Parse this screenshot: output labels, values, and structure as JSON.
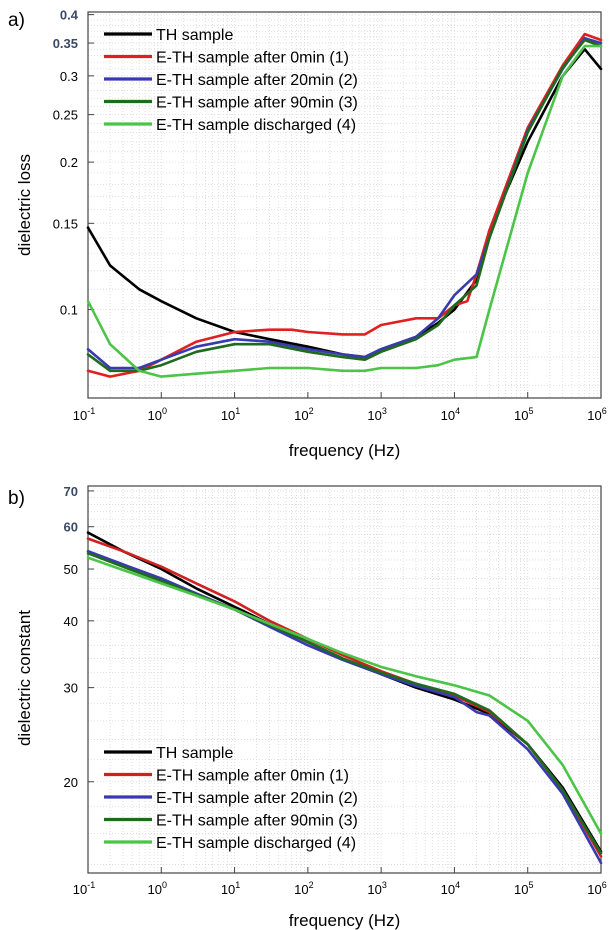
{
  "chart_data": [
    {
      "panel": "a)",
      "type": "line",
      "xlabel": "frequency (Hz)",
      "ylabel": "dielectric loss",
      "x_scale": "log",
      "y_scale": "log",
      "xlim": [
        0.1,
        1000000
      ],
      "ylim": [
        0.066,
        0.405
      ],
      "grid": true,
      "legend": "top-left",
      "x_ticks": [
        {
          "base": "10",
          "exp": "-1",
          "value": 0.1
        },
        {
          "base": "10",
          "exp": "0",
          "value": 1
        },
        {
          "base": "10",
          "exp": "1",
          "value": 10
        },
        {
          "base": "10",
          "exp": "2",
          "value": 100
        },
        {
          "base": "10",
          "exp": "3",
          "value": 1000
        },
        {
          "base": "10",
          "exp": "4",
          "value": 10000
        },
        {
          "base": "10",
          "exp": "5",
          "value": 100000
        },
        {
          "base": "10",
          "exp": "6",
          "value": 1000000
        }
      ],
      "y_ticks": [
        {
          "label": "0.1",
          "value": 0.1
        },
        {
          "label": "0.15",
          "value": 0.15
        },
        {
          "label": "0.2",
          "value": 0.2
        },
        {
          "label": "0.25",
          "value": 0.25
        },
        {
          "label": "0.3",
          "value": 0.3
        }
      ],
      "y_ticks_top": [
        {
          "label": "0.35",
          "value": 0.35
        },
        {
          "label": "0.4",
          "value": 0.4
        }
      ],
      "series": [
        {
          "name": "TH sample",
          "color": "#000000",
          "x": [
            0.1,
            0.2,
            0.5,
            1,
            3,
            10,
            30,
            100,
            300,
            600,
            1000,
            3000,
            6000,
            10000,
            20000,
            30000,
            100000,
            300000,
            600000,
            1000000
          ],
          "y": [
            0.147,
            0.123,
            0.11,
            0.104,
            0.096,
            0.09,
            0.087,
            0.084,
            0.081,
            0.08,
            0.083,
            0.088,
            0.094,
            0.1,
            0.115,
            0.145,
            0.22,
            0.3,
            0.34,
            0.31
          ]
        },
        {
          "name": "E-TH sample after 0min (1)",
          "color": "#e02020",
          "x": [
            0.1,
            0.2,
            0.5,
            1,
            3,
            10,
            30,
            60,
            100,
            300,
            600,
            1000,
            3000,
            6000,
            10000,
            15000,
            20000,
            30000,
            100000,
            300000,
            600000,
            1000000
          ],
          "y": [
            0.075,
            0.073,
            0.075,
            0.079,
            0.086,
            0.09,
            0.091,
            0.091,
            0.09,
            0.089,
            0.089,
            0.093,
            0.096,
            0.096,
            0.102,
            0.104,
            0.118,
            0.145,
            0.235,
            0.315,
            0.365,
            0.355
          ]
        },
        {
          "name": "E-TH sample after 20min (2)",
          "color": "#3a3ab0",
          "x": [
            0.1,
            0.2,
            0.5,
            1,
            3,
            10,
            30,
            100,
            300,
            600,
            1000,
            3000,
            6000,
            10000,
            20000,
            30000,
            100000,
            300000,
            600000,
            1000000
          ],
          "y": [
            0.083,
            0.076,
            0.076,
            0.079,
            0.084,
            0.087,
            0.086,
            0.083,
            0.081,
            0.08,
            0.083,
            0.088,
            0.096,
            0.107,
            0.118,
            0.14,
            0.232,
            0.31,
            0.358,
            0.35
          ]
        },
        {
          "name": "E-TH sample after 90min (3)",
          "color": "#1e6b1e",
          "x": [
            0.1,
            0.2,
            0.5,
            1,
            3,
            10,
            30,
            100,
            300,
            600,
            1000,
            3000,
            6000,
            10000,
            20000,
            30000,
            100000,
            300000,
            600000,
            1000000
          ],
          "y": [
            0.081,
            0.075,
            0.075,
            0.077,
            0.082,
            0.085,
            0.085,
            0.082,
            0.08,
            0.079,
            0.082,
            0.087,
            0.093,
            0.102,
            0.112,
            0.14,
            0.23,
            0.312,
            0.355,
            0.345
          ]
        },
        {
          "name": "E-TH sample discharged (4)",
          "color": "#4cc447",
          "x": [
            0.1,
            0.2,
            0.5,
            1,
            3,
            10,
            30,
            100,
            300,
            600,
            1000,
            3000,
            6000,
            10000,
            20000,
            30000,
            100000,
            300000,
            600000,
            1000000
          ],
          "y": [
            0.104,
            0.085,
            0.075,
            0.073,
            0.074,
            0.075,
            0.076,
            0.076,
            0.075,
            0.075,
            0.076,
            0.076,
            0.077,
            0.079,
            0.08,
            0.1,
            0.19,
            0.3,
            0.345,
            0.345
          ]
        }
      ]
    },
    {
      "panel": "b)",
      "type": "line",
      "xlabel": "frequency (Hz)",
      "ylabel": "dielectric constant",
      "x_scale": "log",
      "y_scale": "log",
      "xlim": [
        0.1,
        1000000
      ],
      "ylim": [
        13.5,
        71.5
      ],
      "grid": true,
      "legend": "bottom-left",
      "x_ticks": [
        {
          "base": "10",
          "exp": "-1",
          "value": 0.1
        },
        {
          "base": "10",
          "exp": "0",
          "value": 1
        },
        {
          "base": "10",
          "exp": "1",
          "value": 10
        },
        {
          "base": "10",
          "exp": "2",
          "value": 100
        },
        {
          "base": "10",
          "exp": "3",
          "value": 1000
        },
        {
          "base": "10",
          "exp": "4",
          "value": 10000
        },
        {
          "base": "10",
          "exp": "5",
          "value": 100000
        },
        {
          "base": "10",
          "exp": "6",
          "value": 1000000
        }
      ],
      "y_ticks": [
        {
          "label": "20",
          "value": 20
        },
        {
          "label": "30",
          "value": 30
        },
        {
          "label": "40",
          "value": 40
        },
        {
          "label": "50",
          "value": 50
        }
      ],
      "y_ticks_top": [
        {
          "label": "60",
          "value": 60
        },
        {
          "label": "70",
          "value": 70
        }
      ],
      "series": [
        {
          "name": "TH sample",
          "color": "#000000",
          "x": [
            0.1,
            0.3,
            1,
            3,
            10,
            30,
            100,
            300,
            1000,
            3000,
            10000,
            30000,
            100000,
            300000,
            1000000
          ],
          "y": [
            58.5,
            54,
            50,
            46,
            42.5,
            39.5,
            36.5,
            34,
            31.8,
            30,
            28.5,
            26.8,
            23.5,
            19.5,
            14.8
          ]
        },
        {
          "name": "E-TH sample after 0min (1)",
          "color": "#d02020",
          "x": [
            0.1,
            0.3,
            1,
            3,
            10,
            30,
            100,
            300,
            1000,
            3000,
            10000,
            30000,
            100000,
            300000,
            1000000
          ],
          "y": [
            57,
            54,
            50.5,
            47,
            43.5,
            40,
            37,
            34.5,
            32.2,
            30.5,
            29,
            27,
            23.5,
            19.3,
            14.5
          ]
        },
        {
          "name": "E-TH sample after 20min (2)",
          "color": "#3a3ab0",
          "x": [
            0.1,
            0.3,
            1,
            3,
            10,
            30,
            100,
            300,
            1000,
            3000,
            10000,
            20000,
            30000,
            100000,
            300000,
            1000000
          ],
          "y": [
            54,
            51,
            48,
            45,
            42,
            39,
            36,
            33.8,
            31.8,
            30.2,
            28.8,
            27,
            26.6,
            23,
            19,
            14.1
          ]
        },
        {
          "name": "E-TH sample after 90min (3)",
          "color": "#1e6b1e",
          "x": [
            0.1,
            0.3,
            1,
            3,
            10,
            30,
            100,
            300,
            1000,
            3000,
            10000,
            30000,
            100000,
            300000,
            1000000
          ],
          "y": [
            53.5,
            50.5,
            47.5,
            44.8,
            42,
            39.3,
            36.5,
            34,
            32,
            30.5,
            29.2,
            27.2,
            23.5,
            19.3,
            14.7
          ]
        },
        {
          "name": "E-TH sample discharged (4)",
          "color": "#4cc447",
          "x": [
            0.1,
            0.3,
            1,
            3,
            10,
            30,
            100,
            300,
            1000,
            3000,
            10000,
            30000,
            100000,
            300000,
            1000000
          ],
          "y": [
            52.5,
            49.8,
            47,
            44.6,
            42,
            39.5,
            37,
            34.8,
            32.8,
            31.5,
            30.3,
            29,
            26,
            21.5,
            16
          ]
        }
      ]
    }
  ]
}
